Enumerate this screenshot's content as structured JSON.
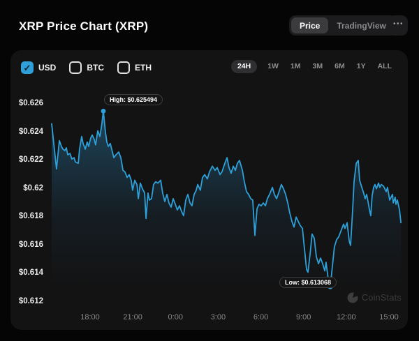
{
  "header": {
    "title": "XRP Price Chart (XRP)",
    "view_toggle": [
      {
        "label": "Price",
        "active": true
      },
      {
        "label": "TradingView",
        "active": false
      }
    ],
    "more_icon": "•••"
  },
  "controls": {
    "check_icon": "✓",
    "currencies": [
      {
        "label": "USD",
        "checked": true
      },
      {
        "label": "BTC",
        "checked": false
      },
      {
        "label": "ETH",
        "checked": false
      }
    ],
    "ranges": [
      {
        "label": "24H",
        "selected": true
      },
      {
        "label": "1W",
        "selected": false
      },
      {
        "label": "1M",
        "selected": false
      },
      {
        "label": "3M",
        "selected": false
      },
      {
        "label": "6M",
        "selected": false
      },
      {
        "label": "1Y",
        "selected": false
      },
      {
        "label": "ALL",
        "selected": false
      }
    ]
  },
  "watermark": {
    "text": "CoinStats"
  },
  "chart_data": {
    "type": "area",
    "title": "XRP Price Chart (XRP)",
    "currency": "USD",
    "selected_range": "24H",
    "line_color": "#2ea0d9",
    "fill_color": "#2d8abe",
    "ylim": [
      0.612,
      0.626
    ],
    "xlim_hours": [
      15.3,
      39.93
    ],
    "high": {
      "t": 18.93,
      "price": 0.625494,
      "label": "High: $0.625494"
    },
    "low": {
      "t": 34.88,
      "price": 0.613068,
      "label": "Low: $0.613068"
    },
    "y_ticks": [
      {
        "v": 0.626,
        "label": "$0.626"
      },
      {
        "v": 0.624,
        "label": "$0.624"
      },
      {
        "v": 0.622,
        "label": "$0.622"
      },
      {
        "v": 0.62,
        "label": "$0.62"
      },
      {
        "v": 0.618,
        "label": "$0.618"
      },
      {
        "v": 0.616,
        "label": "$0.616"
      },
      {
        "v": 0.614,
        "label": "$0.614"
      },
      {
        "v": 0.612,
        "label": "$0.612"
      }
    ],
    "x_ticks": [
      {
        "t": 18,
        "label": "18:00"
      },
      {
        "t": 21,
        "label": "21:00"
      },
      {
        "t": 24,
        "label": "0:00"
      },
      {
        "t": 27,
        "label": "3:00"
      },
      {
        "t": 30,
        "label": "6:00"
      },
      {
        "t": 33,
        "label": "9:00"
      },
      {
        "t": 36,
        "label": "12:00"
      },
      {
        "t": 39,
        "label": "15:00"
      }
    ],
    "points": [
      [
        15.3,
        0.6246
      ],
      [
        15.45,
        0.6232
      ],
      [
        15.64,
        0.6214
      ],
      [
        15.84,
        0.6234
      ],
      [
        15.99,
        0.623
      ],
      [
        16.09,
        0.6228
      ],
      [
        16.23,
        0.6227
      ],
      [
        16.33,
        0.6229
      ],
      [
        16.43,
        0.6224
      ],
      [
        16.58,
        0.6225
      ],
      [
        16.72,
        0.6221
      ],
      [
        16.87,
        0.6222
      ],
      [
        16.97,
        0.6219
      ],
      [
        17.17,
        0.6218
      ],
      [
        17.26,
        0.6228
      ],
      [
        17.41,
        0.6237
      ],
      [
        17.51,
        0.6232
      ],
      [
        17.66,
        0.6228
      ],
      [
        17.8,
        0.6233
      ],
      [
        17.9,
        0.623
      ],
      [
        18.05,
        0.6236
      ],
      [
        18.15,
        0.6238
      ],
      [
        18.29,
        0.6235
      ],
      [
        18.39,
        0.6231
      ],
      [
        18.54,
        0.6241
      ],
      [
        18.69,
        0.6237
      ],
      [
        18.83,
        0.6246
      ],
      [
        18.93,
        0.625494
      ],
      [
        19.08,
        0.624
      ],
      [
        19.18,
        0.6233
      ],
      [
        19.28,
        0.623
      ],
      [
        19.42,
        0.6232
      ],
      [
        19.57,
        0.6226
      ],
      [
        19.67,
        0.6222
      ],
      [
        19.82,
        0.6224
      ],
      [
        20.01,
        0.6226
      ],
      [
        20.16,
        0.6222
      ],
      [
        20.31,
        0.6213
      ],
      [
        20.45,
        0.6212
      ],
      [
        20.6,
        0.6208
      ],
      [
        20.75,
        0.621
      ],
      [
        20.89,
        0.6206
      ],
      [
        20.99,
        0.6199
      ],
      [
        21.14,
        0.6206
      ],
      [
        21.29,
        0.6203
      ],
      [
        21.39,
        0.6193
      ],
      [
        21.53,
        0.6204
      ],
      [
        21.68,
        0.62
      ],
      [
        21.83,
        0.6197
      ],
      [
        21.93,
        0.6179
      ],
      [
        22.07,
        0.6197
      ],
      [
        22.17,
        0.6192
      ],
      [
        22.32,
        0.6193
      ],
      [
        22.46,
        0.6203
      ],
      [
        22.61,
        0.6205
      ],
      [
        22.76,
        0.6204
      ],
      [
        22.96,
        0.6206
      ],
      [
        23.1,
        0.6197
      ],
      [
        23.25,
        0.6191
      ],
      [
        23.4,
        0.6196
      ],
      [
        23.54,
        0.619
      ],
      [
        23.69,
        0.6187
      ],
      [
        23.84,
        0.6193
      ],
      [
        23.99,
        0.6189
      ],
      [
        24.13,
        0.6185
      ],
      [
        24.28,
        0.6188
      ],
      [
        24.43,
        0.6184
      ],
      [
        24.57,
        0.6181
      ],
      [
        24.72,
        0.6192
      ],
      [
        24.87,
        0.6196
      ],
      [
        25.02,
        0.619
      ],
      [
        25.16,
        0.6188
      ],
      [
        25.31,
        0.6196
      ],
      [
        25.46,
        0.6199
      ],
      [
        25.56,
        0.6203
      ],
      [
        25.75,
        0.6199
      ],
      [
        25.9,
        0.6208
      ],
      [
        26.05,
        0.621
      ],
      [
        26.24,
        0.6207
      ],
      [
        26.39,
        0.6212
      ],
      [
        26.59,
        0.6216
      ],
      [
        26.78,
        0.6213
      ],
      [
        26.93,
        0.6215
      ],
      [
        27.13,
        0.621
      ],
      [
        27.27,
        0.6212
      ],
      [
        27.47,
        0.6218
      ],
      [
        27.62,
        0.6222
      ],
      [
        27.76,
        0.6215
      ],
      [
        27.91,
        0.6211
      ],
      [
        28.06,
        0.6216
      ],
      [
        28.21,
        0.6213
      ],
      [
        28.35,
        0.6218
      ],
      [
        28.5,
        0.622
      ],
      [
        28.7,
        0.6213
      ],
      [
        28.84,
        0.6205
      ],
      [
        28.99,
        0.6198
      ],
      [
        29.14,
        0.6196
      ],
      [
        29.29,
        0.6193
      ],
      [
        29.43,
        0.6192
      ],
      [
        29.58,
        0.6167
      ],
      [
        29.73,
        0.6186
      ],
      [
        29.87,
        0.6189
      ],
      [
        30.02,
        0.6188
      ],
      [
        30.17,
        0.619
      ],
      [
        30.32,
        0.6188
      ],
      [
        30.46,
        0.6193
      ],
      [
        30.61,
        0.6196
      ],
      [
        30.81,
        0.6201
      ],
      [
        30.95,
        0.6196
      ],
      [
        31.1,
        0.6193
      ],
      [
        31.25,
        0.6197
      ],
      [
        31.44,
        0.6203
      ],
      [
        31.59,
        0.62
      ],
      [
        31.74,
        0.6196
      ],
      [
        31.89,
        0.619
      ],
      [
        32.03,
        0.6183
      ],
      [
        32.18,
        0.6177
      ],
      [
        32.33,
        0.6173
      ],
      [
        32.48,
        0.618
      ],
      [
        32.62,
        0.6177
      ],
      [
        32.77,
        0.6174
      ],
      [
        32.92,
        0.6172
      ],
      [
        33.06,
        0.6158
      ],
      [
        33.21,
        0.6143
      ],
      [
        33.31,
        0.6141
      ],
      [
        33.46,
        0.6154
      ],
      [
        33.6,
        0.6168
      ],
      [
        33.75,
        0.6165
      ],
      [
        33.9,
        0.6152
      ],
      [
        34.05,
        0.6147
      ],
      [
        34.19,
        0.6151
      ],
      [
        34.34,
        0.6147
      ],
      [
        34.49,
        0.6142
      ],
      [
        34.58,
        0.6148
      ],
      [
        34.73,
        0.6136
      ],
      [
        34.88,
        0.613068
      ],
      [
        35.03,
        0.6146
      ],
      [
        35.17,
        0.6159
      ],
      [
        35.32,
        0.6164
      ],
      [
        35.47,
        0.6166
      ],
      [
        35.62,
        0.617
      ],
      [
        35.81,
        0.6175
      ],
      [
        35.91,
        0.6172
      ],
      [
        36.06,
        0.6176
      ],
      [
        36.21,
        0.6163
      ],
      [
        36.3,
        0.616
      ],
      [
        36.45,
        0.6185
      ],
      [
        36.55,
        0.6205
      ],
      [
        36.7,
        0.6218
      ],
      [
        36.84,
        0.622
      ],
      [
        36.94,
        0.6206
      ],
      [
        37.09,
        0.6201
      ],
      [
        37.19,
        0.6198
      ],
      [
        37.33,
        0.6193
      ],
      [
        37.43,
        0.6196
      ],
      [
        37.53,
        0.6191
      ],
      [
        37.63,
        0.6185
      ],
      [
        37.72,
        0.6181
      ],
      [
        37.82,
        0.6195
      ],
      [
        37.92,
        0.6201
      ],
      [
        38.02,
        0.6203
      ],
      [
        38.12,
        0.62
      ],
      [
        38.27,
        0.6204
      ],
      [
        38.36,
        0.6201
      ],
      [
        38.46,
        0.6203
      ],
      [
        38.61,
        0.6202
      ],
      [
        38.81,
        0.6198
      ],
      [
        38.9,
        0.6201
      ],
      [
        39.05,
        0.6192
      ],
      [
        39.25,
        0.6196
      ],
      [
        39.3,
        0.619
      ],
      [
        39.44,
        0.6194
      ],
      [
        39.49,
        0.6189
      ],
      [
        39.59,
        0.6192
      ],
      [
        39.74,
        0.6185
      ],
      [
        39.84,
        0.6176
      ]
    ]
  }
}
